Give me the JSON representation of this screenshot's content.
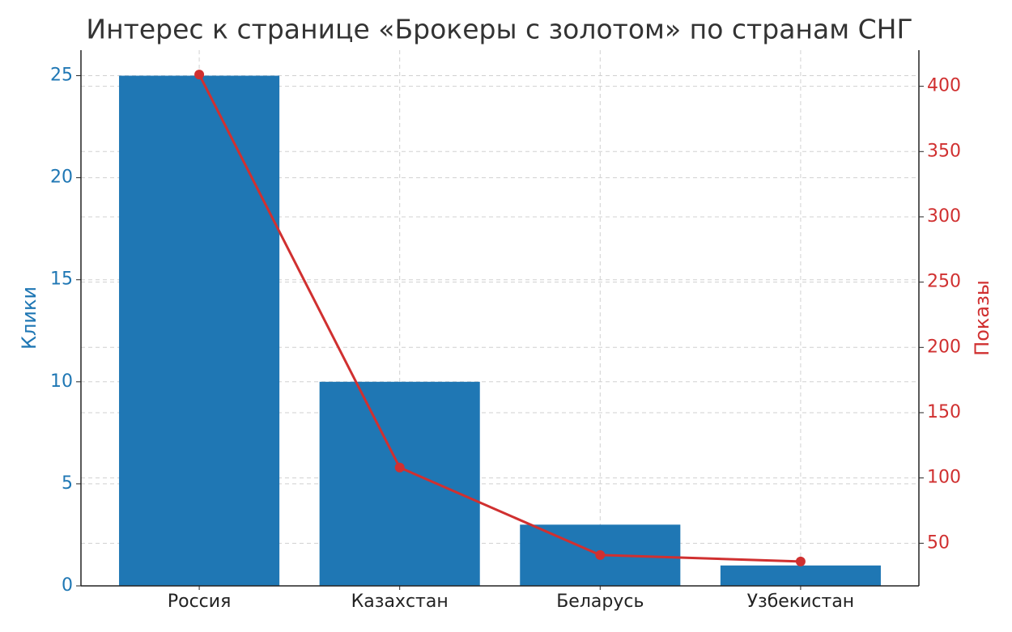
{
  "chart_data": {
    "type": "bar-line",
    "title": "Интерес к странице «Брокеры с золотом» по странам СНГ",
    "y_label": "Клики",
    "y2_label": "Показы",
    "categories": [
      "Россия",
      "Казахстан",
      "Беларусь",
      "Узбекистан"
    ],
    "series": [
      {
        "name": "Клики",
        "type": "bar",
        "color": "#1f77b4",
        "values": [
          25,
          10,
          3,
          1
        ]
      },
      {
        "name": "Показы",
        "type": "line",
        "axis": "y2",
        "color": "#d03030",
        "values": [
          409,
          108,
          41,
          36
        ]
      }
    ],
    "ylim": [
      0,
      26.25
    ],
    "yticks": [
      0,
      5,
      10,
      15,
      20,
      25
    ],
    "y2lim": [
      17.35,
      427.65
    ],
    "y2ticks": [
      50,
      100,
      150,
      200,
      250,
      300,
      350,
      400
    ],
    "y_label_color": "#1f77b4",
    "y2_label_color": "#d03030",
    "grid": true
  }
}
